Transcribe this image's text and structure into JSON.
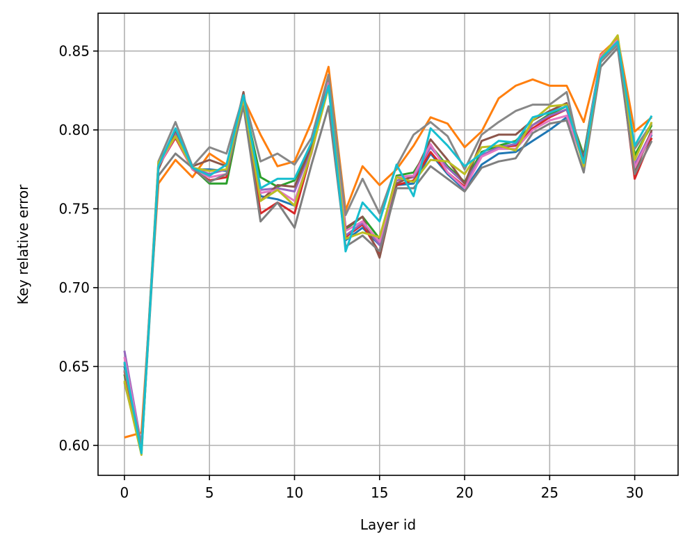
{
  "chart_data": {
    "type": "line",
    "title": "",
    "xlabel": "Layer id",
    "ylabel": "Key relative error",
    "xlim": [
      -1.55,
      32.55
    ],
    "ylim": [
      0.581,
      0.874
    ],
    "xticks": [
      0,
      5,
      10,
      15,
      20,
      25,
      30
    ],
    "yticks": [
      0.6,
      0.65,
      0.7,
      0.75,
      0.8,
      0.85
    ],
    "ytick_labels": [
      "0.60",
      "0.65",
      "0.70",
      "0.75",
      "0.80",
      "0.85"
    ],
    "grid": true,
    "legend": "none",
    "x": [
      0,
      1,
      2,
      3,
      4,
      5,
      6,
      7,
      8,
      9,
      10,
      11,
      12,
      13,
      14,
      15,
      16,
      17,
      18,
      19,
      20,
      21,
      22,
      23,
      24,
      25,
      26,
      27,
      28,
      29,
      30,
      31
    ],
    "series": [
      {
        "color": "#1f77b4",
        "values": [
          0.65,
          0.596,
          0.776,
          0.799,
          0.775,
          0.775,
          0.774,
          0.818,
          0.758,
          0.756,
          0.752,
          0.786,
          0.828,
          0.73,
          0.738,
          0.727,
          0.765,
          0.766,
          0.785,
          0.772,
          0.762,
          0.778,
          0.785,
          0.786,
          0.793,
          0.8,
          0.808,
          0.78,
          0.845,
          0.856,
          0.776,
          0.797
        ]
      },
      {
        "color": "#ff7f0e",
        "values": [
          0.605,
          0.608,
          0.766,
          0.781,
          0.77,
          0.785,
          0.778,
          0.82,
          0.797,
          0.777,
          0.78,
          0.805,
          0.84,
          0.749,
          0.777,
          0.765,
          0.775,
          0.79,
          0.808,
          0.804,
          0.789,
          0.799,
          0.82,
          0.828,
          0.832,
          0.828,
          0.828,
          0.805,
          0.848,
          0.858,
          0.799,
          0.808
        ]
      },
      {
        "color": "#2ca02c",
        "values": [
          0.645,
          0.597,
          0.779,
          0.797,
          0.776,
          0.766,
          0.766,
          0.819,
          0.77,
          0.764,
          0.768,
          0.789,
          0.829,
          0.737,
          0.745,
          0.731,
          0.771,
          0.773,
          0.79,
          0.777,
          0.767,
          0.786,
          0.79,
          0.793,
          0.803,
          0.81,
          0.815,
          0.784,
          0.846,
          0.857,
          0.784,
          0.803
        ]
      },
      {
        "color": "#d62728",
        "values": [
          0.647,
          0.597,
          0.777,
          0.795,
          0.775,
          0.768,
          0.77,
          0.82,
          0.747,
          0.754,
          0.747,
          0.786,
          0.829,
          0.732,
          0.74,
          0.722,
          0.765,
          0.768,
          0.786,
          0.773,
          0.764,
          0.783,
          0.789,
          0.79,
          0.801,
          0.808,
          0.813,
          0.78,
          0.845,
          0.856,
          0.769,
          0.795
        ]
      },
      {
        "color": "#9467bd",
        "values": [
          0.66,
          0.6,
          0.777,
          0.798,
          0.776,
          0.772,
          0.775,
          0.819,
          0.762,
          0.763,
          0.761,
          0.788,
          0.829,
          0.733,
          0.741,
          0.727,
          0.768,
          0.77,
          0.789,
          0.776,
          0.766,
          0.784,
          0.789,
          0.791,
          0.803,
          0.809,
          0.813,
          0.782,
          0.846,
          0.857,
          0.778,
          0.799
        ]
      },
      {
        "color": "#8c564b",
        "values": [
          0.652,
          0.598,
          0.775,
          0.8,
          0.777,
          0.781,
          0.777,
          0.824,
          0.755,
          0.765,
          0.764,
          0.79,
          0.833,
          0.738,
          0.745,
          0.719,
          0.766,
          0.771,
          0.794,
          0.781,
          0.766,
          0.793,
          0.797,
          0.797,
          0.806,
          0.812,
          0.817,
          0.781,
          0.845,
          0.856,
          0.773,
          0.8
        ]
      },
      {
        "color": "#e377c2",
        "values": [
          0.656,
          0.599,
          0.777,
          0.796,
          0.775,
          0.77,
          0.772,
          0.818,
          0.76,
          0.762,
          0.755,
          0.785,
          0.83,
          0.736,
          0.742,
          0.729,
          0.77,
          0.771,
          0.791,
          0.773,
          0.763,
          0.783,
          0.788,
          0.788,
          0.8,
          0.806,
          0.809,
          0.779,
          0.847,
          0.857,
          0.776,
          0.798
        ]
      },
      {
        "color": "#7f7f7f",
        "values": [
          0.64,
          0.596,
          0.771,
          0.785,
          0.776,
          0.767,
          0.772,
          0.815,
          0.742,
          0.754,
          0.738,
          0.778,
          0.815,
          0.726,
          0.733,
          0.723,
          0.763,
          0.763,
          0.777,
          0.769,
          0.761,
          0.776,
          0.78,
          0.782,
          0.798,
          0.804,
          0.806,
          0.773,
          0.84,
          0.852,
          0.772,
          0.793
        ]
      },
      {
        "color": "#888888",
        "values": [
          0.648,
          0.6,
          0.78,
          0.805,
          0.777,
          0.789,
          0.785,
          0.822,
          0.78,
          0.785,
          0.778,
          0.795,
          0.835,
          0.746,
          0.769,
          0.747,
          0.777,
          0.797,
          0.805,
          0.796,
          0.775,
          0.797,
          0.805,
          0.812,
          0.816,
          0.816,
          0.824,
          0.776,
          0.843,
          0.854,
          0.788,
          0.804
        ]
      },
      {
        "color": "#bcbd22",
        "values": [
          0.641,
          0.594,
          0.779,
          0.796,
          0.776,
          0.774,
          0.775,
          0.82,
          0.755,
          0.762,
          0.752,
          0.786,
          0.827,
          0.731,
          0.735,
          0.732,
          0.77,
          0.767,
          0.781,
          0.78,
          0.772,
          0.789,
          0.79,
          0.787,
          0.806,
          0.815,
          0.816,
          0.777,
          0.845,
          0.86,
          0.781,
          0.805
        ]
      },
      {
        "color": "#17becf",
        "values": [
          0.653,
          0.595,
          0.777,
          0.801,
          0.776,
          0.771,
          0.778,
          0.822,
          0.763,
          0.769,
          0.769,
          0.792,
          0.828,
          0.723,
          0.754,
          0.742,
          0.778,
          0.758,
          0.801,
          0.79,
          0.777,
          0.785,
          0.793,
          0.792,
          0.808,
          0.811,
          0.815,
          0.779,
          0.845,
          0.856,
          0.79,
          0.809
        ]
      }
    ]
  }
}
